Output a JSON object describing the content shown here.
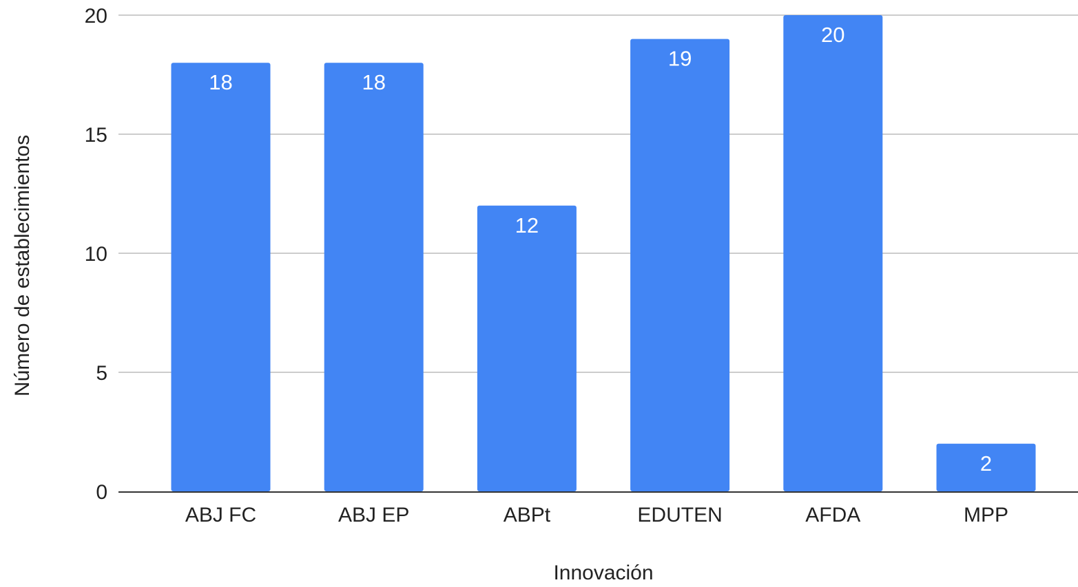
{
  "chart_data": {
    "type": "bar",
    "title": "",
    "xlabel": "Innovación",
    "ylabel": "Número de establecimientos",
    "categories": [
      "ABJ FC",
      "ABJ EP",
      "ABPt",
      "EDUTEN",
      "AFDA",
      "MPP"
    ],
    "values": [
      18,
      18,
      12,
      19,
      20,
      2
    ],
    "data_labels": [
      "18",
      "18",
      "12",
      "19",
      "20",
      "2"
    ],
    "ylim": [
      0,
      20
    ],
    "yticks": [
      0,
      5,
      10,
      15,
      20
    ],
    "ytick_labels": [
      "0",
      "5",
      "10",
      "15",
      "20"
    ],
    "grid": true,
    "legend": "none",
    "colors": {
      "bar": "#4285f4",
      "grid": "#cccccc",
      "axis": "#333333",
      "data_label": "#ffffff"
    }
  }
}
